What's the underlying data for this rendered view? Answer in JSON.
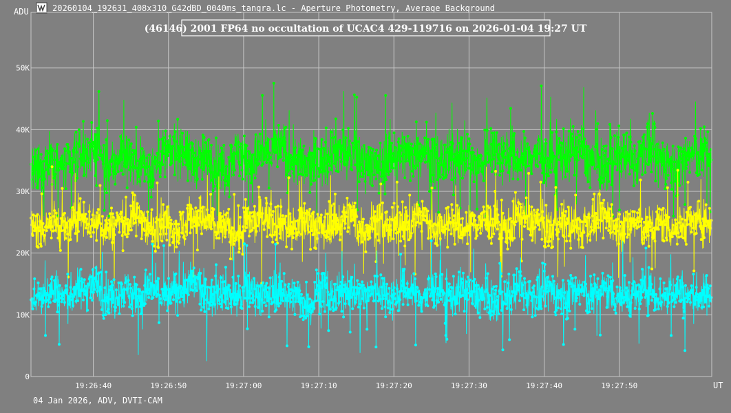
{
  "window": {
    "title": "20260104_192631_408x310_G42dBD_0040ms_tangra.lc - Aperture Photometry, Average Background",
    "icon": "tangra-app-icon"
  },
  "footer": {
    "caption": "04 Jan 2026, ADV, DVTI-CAM"
  },
  "colors": {
    "background": "#808080",
    "grid": "#C8C8C8",
    "text": "#FFFFFF",
    "title_box_bg": "#808080"
  },
  "chart_data": {
    "type": "line",
    "title": "(46146) 2001 FP64 no occultation of UCAC4 429-119716 on 2026-01-04  19:27 UT",
    "y_unit_label": "ADU",
    "x_unit_label": "UT",
    "ylim": [
      0,
      59000
    ],
    "y_ticks": [
      0,
      10000,
      20000,
      30000,
      40000,
      50000
    ],
    "y_tick_labels": [
      "0",
      "10K",
      "20K",
      "30K",
      "40K",
      "50K"
    ],
    "xlim": [
      "19:26:31.7",
      "19:28:02.3"
    ],
    "x_ticks": [
      "19:26:40",
      "19:26:50",
      "19:27:00",
      "19:27:10",
      "19:27:20",
      "19:27:30",
      "19:27:40",
      "19:27:50"
    ],
    "grid": true,
    "legend": "none",
    "sample_interval_s": 0.04,
    "series": [
      {
        "color": "#00FF00",
        "values": [
          33000,
          35000,
          34000,
          36000,
          37000,
          34000,
          36000,
          35000,
          34000,
          36000,
          37000,
          35000,
          35000,
          34000,
          36000,
          35000,
          36000,
          37000,
          35000,
          34000,
          35000,
          37000,
          36000,
          35000,
          34000,
          36000,
          36000,
          37000,
          35000,
          35000,
          36000,
          34000,
          37000,
          36000,
          35000,
          36000,
          35000,
          36000,
          37000,
          35000,
          34000,
          36000,
          35000,
          37000,
          35000,
          34000,
          36000,
          36000
        ],
        "mean": 35500,
        "range": [
          26000,
          51000
        ],
        "note_visible": "dense point cloud"
      },
      {
        "color": "#FFFF00",
        "values": [
          24000,
          25000,
          24000,
          26000,
          25000,
          24000,
          25000,
          26000,
          24000,
          25000,
          24000,
          26000,
          25000,
          24000,
          23000,
          25000,
          26000,
          25000,
          24000,
          25000,
          24000,
          25000,
          26000,
          24000,
          25000,
          24000,
          25000,
          26000,
          24000,
          25000,
          24000,
          25000,
          25000,
          24000,
          26000,
          25000,
          24000,
          25000,
          24000,
          25000,
          26000,
          24000,
          25000,
          24000,
          25000,
          24000,
          25000,
          25000
        ],
        "mean": 24800,
        "range": [
          14000,
          34000
        ]
      },
      {
        "color": "#00FFFF",
        "values": [
          13000,
          14000,
          13000,
          14000,
          15000,
          13000,
          14000,
          13000,
          14000,
          13000,
          14000,
          15000,
          13000,
          14000,
          13000,
          14000,
          13000,
          14000,
          13000,
          12000,
          14000,
          13000,
          14000,
          13000,
          14000,
          13000,
          14000,
          13000,
          14000,
          13000,
          14000,
          13000,
          12000,
          13000,
          14000,
          13000,
          14000,
          13000,
          14000,
          13000,
          14000,
          13000,
          13000,
          14000,
          13000,
          14000,
          13000,
          13000
        ],
        "mean": 13300,
        "range": [
          2500,
          22000
        ]
      }
    ]
  }
}
